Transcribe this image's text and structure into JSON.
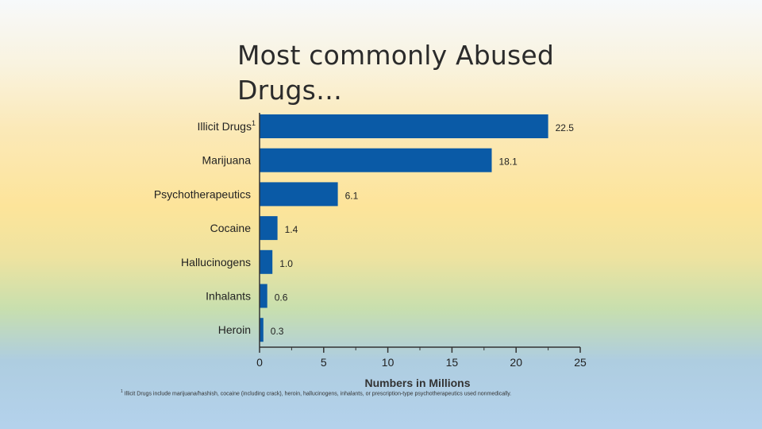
{
  "slide": {
    "title_line1": "Most commonly Abused",
    "title_line2": "Drugs…"
  },
  "chart_data": {
    "type": "bar",
    "orientation": "horizontal",
    "categories": [
      "Illicit Drugs",
      "Marijuana",
      "Psychotherapeutics",
      "Cocaine",
      "Hallucinogens",
      "Inhalants",
      "Heroin"
    ],
    "category_superscripts": [
      "1",
      "",
      "",
      "",
      "",
      "",
      ""
    ],
    "values": [
      22.5,
      18.1,
      6.1,
      1.4,
      1.0,
      0.6,
      0.3
    ],
    "value_labels": [
      "22.5",
      "18.1",
      "6.1",
      "1.4",
      "1.0",
      "0.6",
      "0.3"
    ],
    "xlabel": "Numbers in Millions",
    "ylabel": "",
    "xlim": [
      0,
      25
    ],
    "xticks": [
      0,
      5,
      10,
      15,
      20,
      25
    ],
    "bar_color": "#0a5aa6",
    "grid": false
  },
  "footnote": {
    "marker": "1",
    "text": " Illicit Drugs include marijuana/hashish, cocaine (including crack), heroin, hallucinogens, inhalants, or prescription-type psychotherapeutics used nonmedically."
  }
}
